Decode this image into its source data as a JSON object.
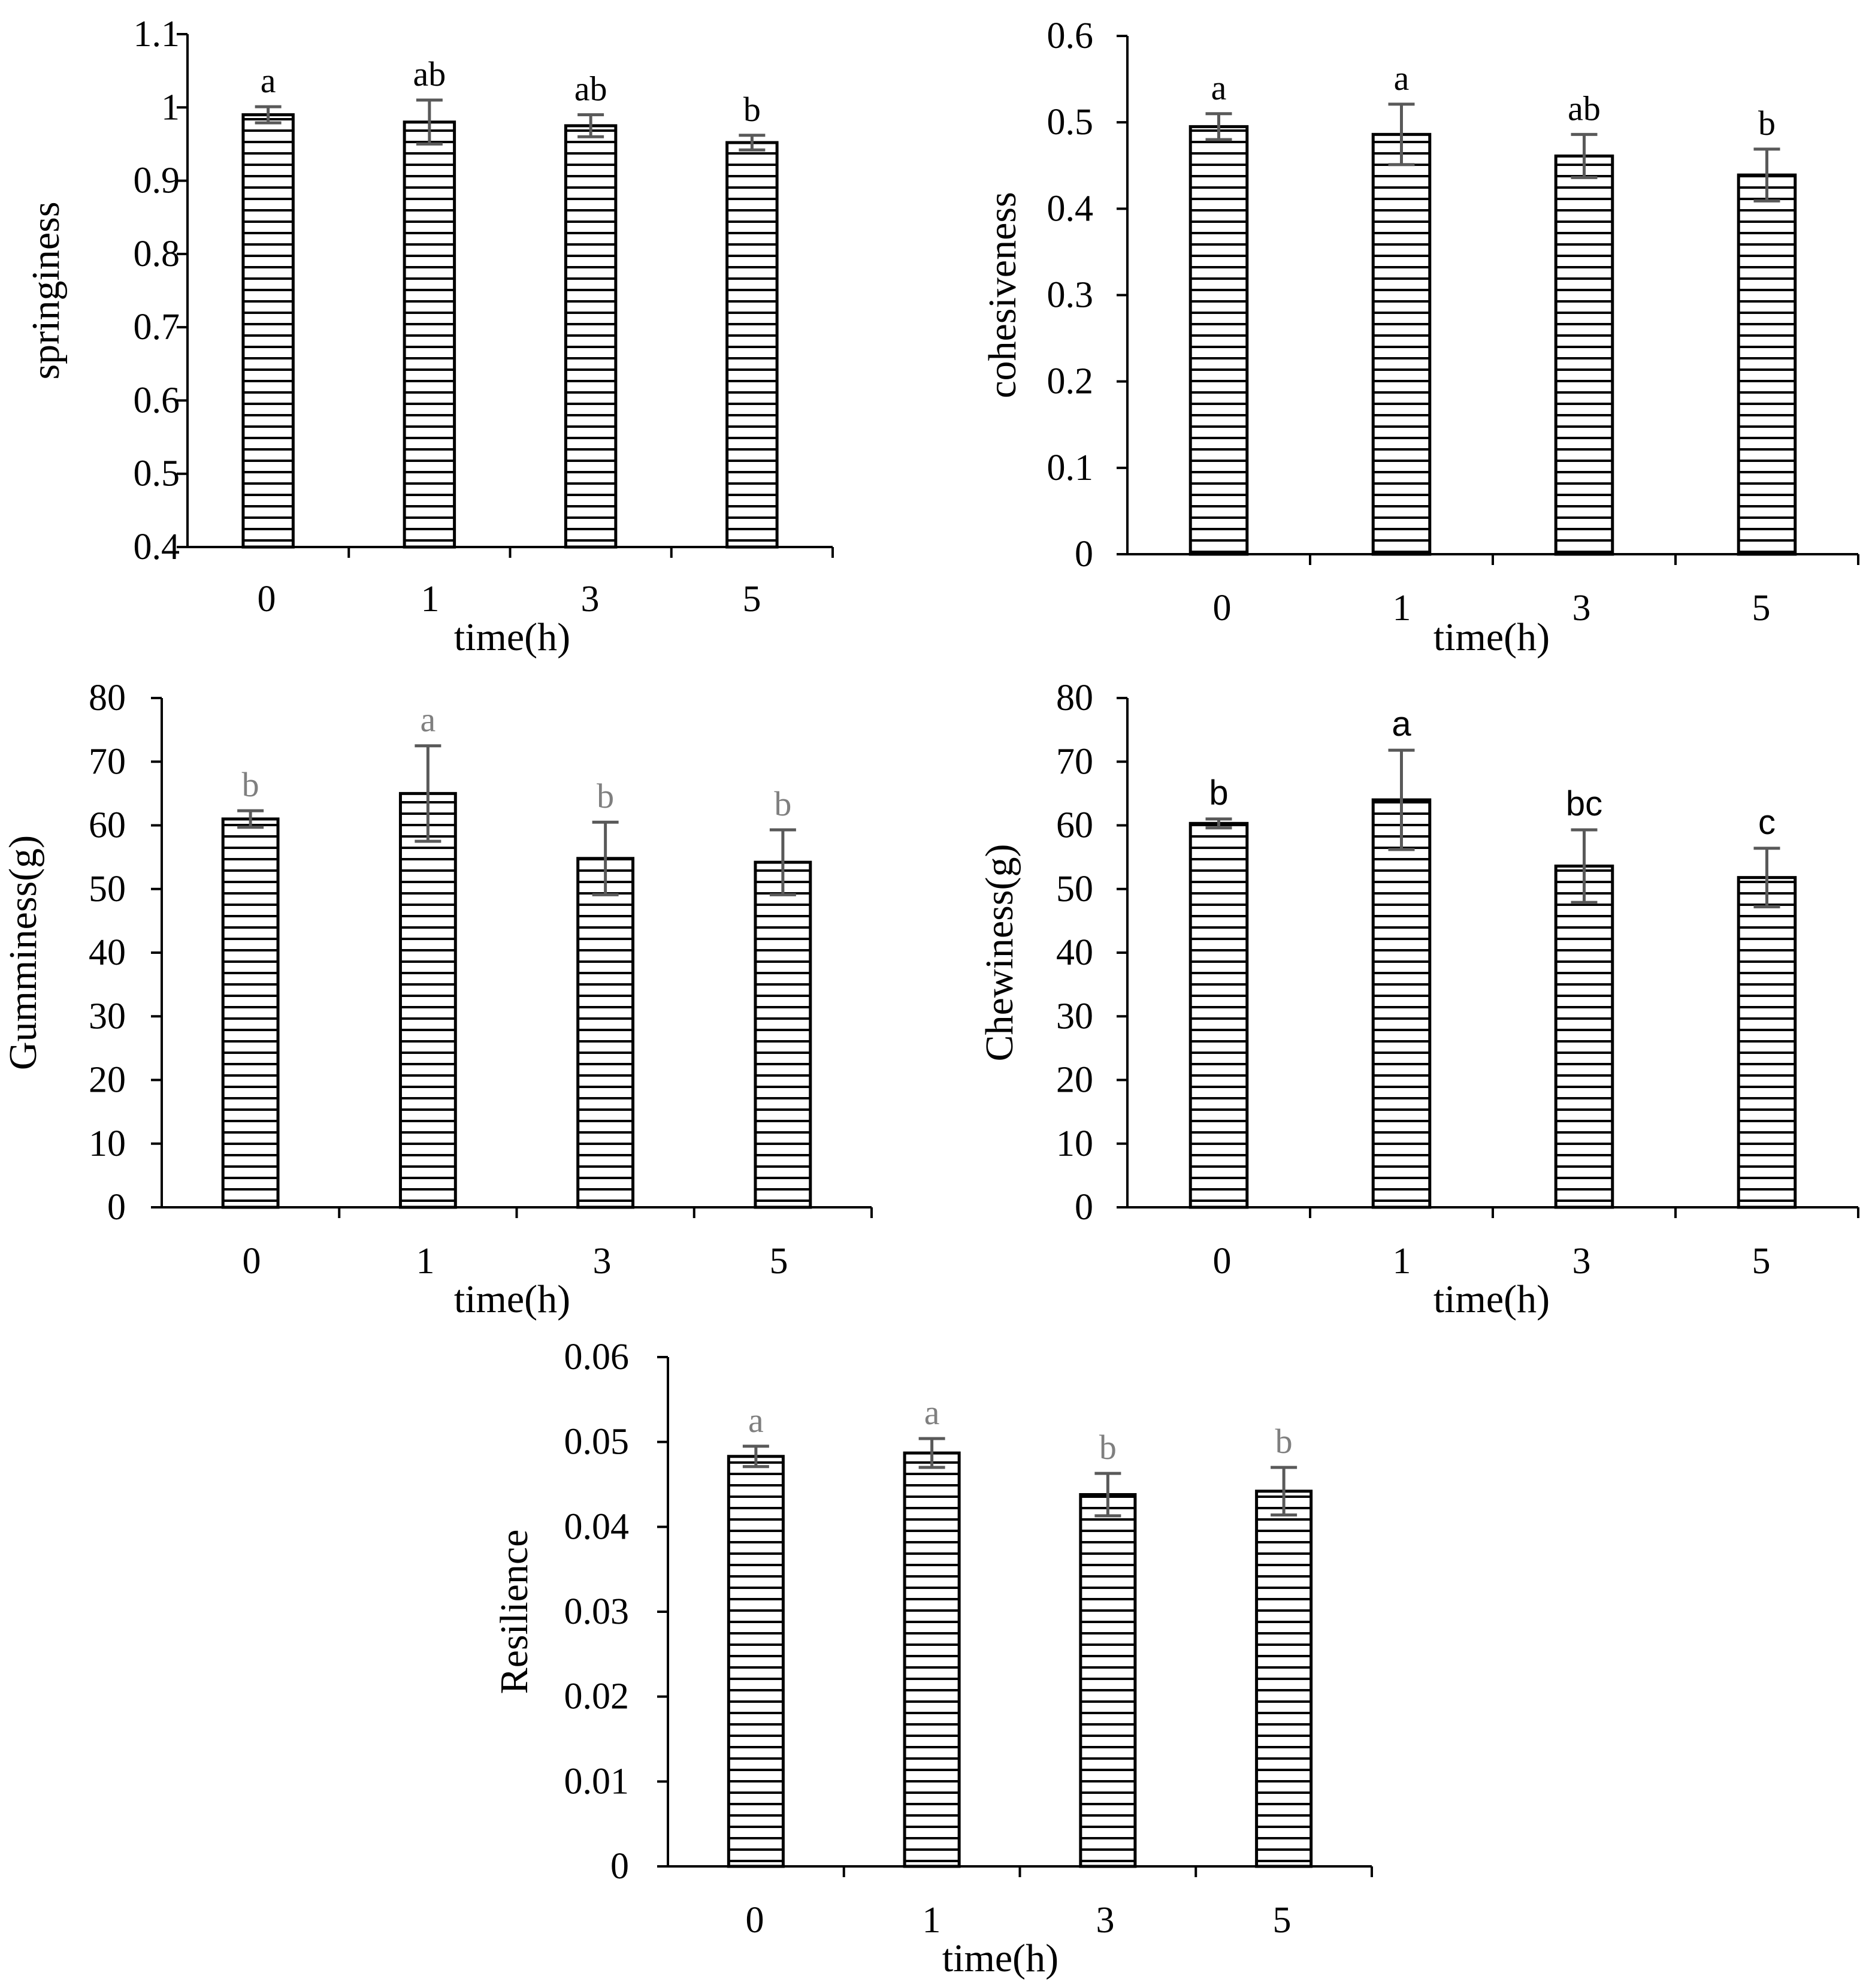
{
  "chart_data": [
    {
      "type": "bar",
      "title": "",
      "xlabel": "time(h)",
      "ylabel": "springiness",
      "categories": [
        "0",
        "1",
        "3",
        "5"
      ],
      "values": [
        0.99,
        0.98,
        0.975,
        0.952
      ],
      "errors": [
        0.011,
        0.03,
        0.015,
        0.01
      ],
      "significance": [
        "a",
        "ab",
        "ab",
        "b"
      ],
      "ylim": [
        0.4,
        1.1
      ],
      "yticks": [
        "0.4",
        "0.5",
        "0.6",
        "0.7",
        "0.8",
        "0.9",
        "1",
        "1.1"
      ]
    },
    {
      "type": "bar",
      "title": "",
      "xlabel": "time(h)",
      "ylabel": "cohesiveness",
      "categories": [
        "0",
        "1",
        "3",
        "5"
      ],
      "values": [
        0.495,
        0.486,
        0.461,
        0.439
      ],
      "errors": [
        0.015,
        0.035,
        0.025,
        0.03
      ],
      "significance": [
        "a",
        "a",
        "ab",
        "b"
      ],
      "ylim": [
        0,
        0.6
      ],
      "yticks": [
        "0",
        "0.1",
        "0.2",
        "0.3",
        "0.4",
        "0.5",
        "0.6"
      ]
    },
    {
      "type": "bar",
      "title": "",
      "xlabel": "time(h)",
      "ylabel": "Gumminess(g)",
      "categories": [
        "0",
        "1",
        "3",
        "5"
      ],
      "values": [
        61,
        65,
        54.8,
        54.2
      ],
      "errors": [
        1.3,
        7.5,
        5.7,
        5.1
      ],
      "significance": [
        "b",
        "a",
        "b",
        "b"
      ],
      "ylim": [
        0,
        80
      ],
      "yticks": [
        "0",
        "10",
        "20",
        "30",
        "40",
        "50",
        "60",
        "70",
        "80"
      ]
    },
    {
      "type": "bar",
      "title": "",
      "xlabel": "time(h)",
      "ylabel": "Chewiness(g)",
      "categories": [
        "0",
        "1",
        "3",
        "5"
      ],
      "values": [
        60.3,
        64,
        53.6,
        51.8
      ],
      "errors": [
        0.7,
        7.8,
        5.7,
        4.6
      ],
      "significance": [
        "b",
        "a",
        "bc",
        "c"
      ],
      "ylim": [
        0,
        80
      ],
      "yticks": [
        "0",
        "10",
        "20",
        "30",
        "40",
        "50",
        "60",
        "70",
        "80"
      ]
    },
    {
      "type": "bar",
      "title": "",
      "xlabel": "time(h)",
      "ylabel": "Resilience",
      "categories": [
        "0",
        "1",
        "3",
        "5"
      ],
      "values": [
        0.0483,
        0.0487,
        0.0438,
        0.0442
      ],
      "errors": [
        0.0012,
        0.0017,
        0.0025,
        0.0028
      ],
      "significance": [
        "a",
        "a",
        "b",
        "b"
      ],
      "ylim": [
        0,
        0.06
      ],
      "yticks": [
        "0",
        "0.01",
        "0.02",
        "0.03",
        "0.04",
        "0.05",
        "0.06"
      ]
    }
  ],
  "colors": {
    "bar_fill": "#ffffff",
    "bar_stroke": "#000000",
    "hatch": "#000000",
    "error_bar": "#595959",
    "axis": "#000000",
    "sig_black": "#000000",
    "sig_gray": "#7f7f7f"
  }
}
